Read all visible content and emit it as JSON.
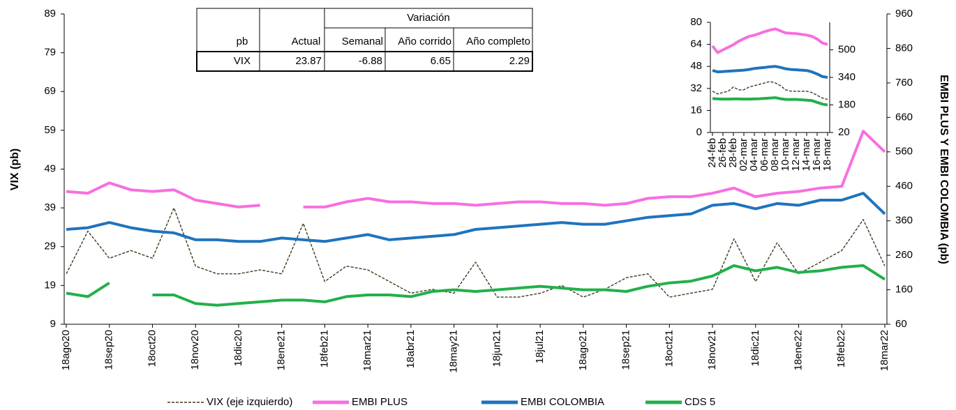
{
  "chart_data": [
    {
      "type": "line",
      "ylabel": "VIX  (pb)",
      "y2label": "EMBI PLUS Y EMBI COLOMBIA  (pb)",
      "categories": [
        "18ago20",
        null,
        "18sep20",
        null,
        "18oct20",
        null,
        "18nov20",
        null,
        "18dic20",
        null,
        "18ene21",
        null,
        "18feb21",
        null,
        "18mar21",
        null,
        "18abr21",
        null,
        "18may21",
        null,
        "18jun21",
        null,
        "18jul21",
        null,
        "18ago21",
        null,
        "18sep21",
        null,
        "18oct21",
        null,
        "18nov21",
        null,
        "18dic21",
        null,
        "18ene22",
        null,
        "18feb22",
        null,
        "18mar22"
      ],
      "ylim": [
        9,
        89
      ],
      "yticks": [
        9,
        19,
        29,
        39,
        49,
        59,
        69,
        79,
        89
      ],
      "y2lim": [
        60,
        960
      ],
      "y2ticks": [
        60,
        160,
        260,
        360,
        460,
        560,
        660,
        760,
        860,
        960
      ],
      "legend": "bottom",
      "series": [
        {
          "name": "VIX (eje izquierdo)",
          "color": "#3b3b1f",
          "line_style": "dashed",
          "values": [
            22,
            33,
            26,
            28,
            26,
            39,
            24,
            22,
            22,
            23,
            22,
            35,
            20,
            24,
            23,
            20,
            17,
            18,
            17,
            25,
            16,
            16,
            17,
            19,
            16,
            18,
            21,
            22,
            16,
            17,
            18,
            31,
            20,
            30,
            22,
            25,
            28,
            36,
            24
          ]
        },
        {
          "name": "EMBI PLUS",
          "color": "#f76fe0",
          "axis": "y2",
          "values": [
            445,
            440,
            470,
            450,
            445,
            450,
            420,
            410,
            400,
            405,
            null,
            400,
            400,
            415,
            425,
            415,
            415,
            410,
            410,
            405,
            410,
            415,
            415,
            410,
            410,
            405,
            410,
            425,
            430,
            430,
            440,
            455,
            430,
            440,
            445,
            455,
            460,
            620,
            560
          ]
        },
        {
          "name": "EMBI COLOMBIA",
          "color": "#1f73be",
          "axis": "y2",
          "values": [
            335,
            340,
            355,
            340,
            330,
            325,
            305,
            305,
            300,
            300,
            310,
            305,
            300,
            310,
            320,
            305,
            310,
            315,
            320,
            335,
            340,
            345,
            350,
            355,
            350,
            350,
            360,
            370,
            375,
            380,
            405,
            410,
            395,
            410,
            405,
            420,
            420,
            440,
            380
          ]
        },
        {
          "name": "CDS 5",
          "color": "#22b04b",
          "axis": "y2",
          "values": [
            150,
            140,
            180,
            null,
            145,
            145,
            120,
            115,
            120,
            125,
            130,
            130,
            125,
            140,
            145,
            145,
            140,
            155,
            160,
            155,
            160,
            165,
            170,
            165,
            160,
            160,
            155,
            170,
            180,
            185,
            200,
            230,
            215,
            225,
            210,
            215,
            225,
            230,
            190
          ]
        }
      ]
    },
    {
      "type": "line",
      "categories": [
        "24-feb",
        null,
        "26-feb",
        null,
        "28-feb",
        null,
        "02-mar",
        null,
        "04-mar",
        null,
        "06-mar",
        null,
        "08-mar",
        null,
        "10-mar",
        null,
        "12-mar",
        null,
        "14-mar",
        null,
        "16-mar",
        null,
        "18-mar"
      ],
      "ylim": [
        0,
        80
      ],
      "yticks": [
        0,
        16,
        32,
        48,
        64,
        80
      ],
      "y2lim": [
        20,
        660
      ],
      "y2ticks": [
        20,
        180,
        340,
        500
      ],
      "series": [
        {
          "color": "#3b3b1f",
          "line_style": "dashed",
          "values": [
            30,
            28,
            29,
            30,
            33,
            31,
            31,
            33,
            34,
            35,
            36,
            37,
            36,
            34,
            31,
            30,
            30,
            30,
            30,
            29,
            27,
            25,
            24
          ]
        },
        {
          "color": "#f76fe0",
          "axis": "y2",
          "values": [
            523,
            484,
            500,
            515,
            530,
            550,
            565,
            578,
            585,
            595,
            606,
            615,
            622,
            610,
            598,
            596,
            594,
            590,
            586,
            578,
            563,
            540,
            531
          ]
        },
        {
          "color": "#1f73be",
          "axis": "y2",
          "values": [
            380,
            372,
            374,
            376,
            378,
            380,
            382,
            386,
            392,
            395,
            398,
            402,
            404,
            398,
            390,
            386,
            384,
            382,
            380,
            372,
            360,
            345,
            340
          ]
        },
        {
          "color": "#22b04b",
          "axis": "y2",
          "values": [
            217,
            215,
            214,
            214,
            215,
            215,
            214,
            214,
            215,
            216,
            218,
            220,
            222,
            216,
            212,
            212,
            212,
            210,
            208,
            205,
            195,
            185,
            180
          ]
        }
      ]
    }
  ],
  "table": {
    "group_header": "Variación",
    "header": [
      "pb",
      "Actual",
      "Semanal",
      "Año corrido",
      "Año completo"
    ],
    "rows": [
      [
        "VIX",
        "23.87",
        "-6.88",
        "6.65",
        "2.29"
      ]
    ]
  }
}
